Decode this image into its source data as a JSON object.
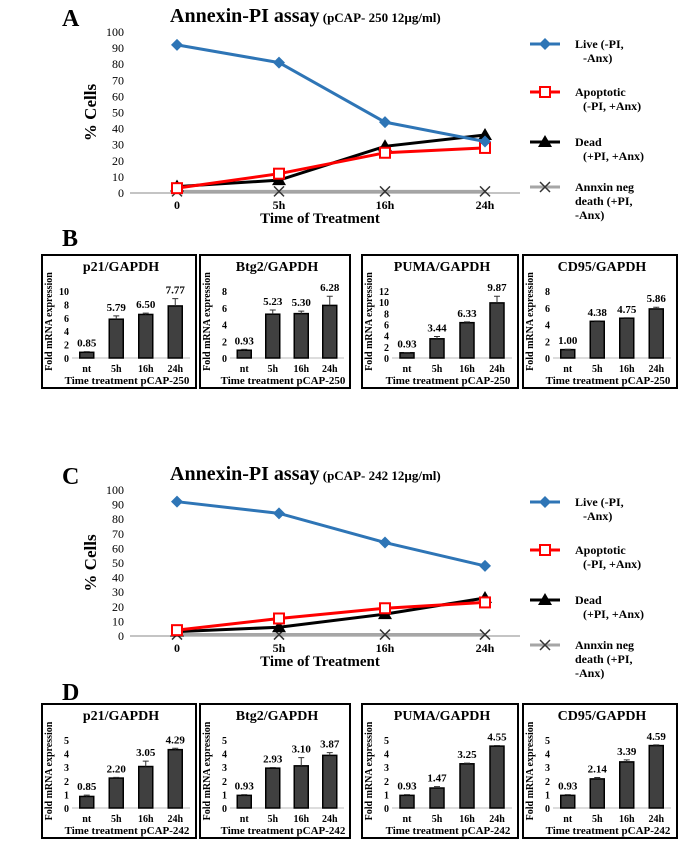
{
  "chart_data": [
    {
      "panel": "A",
      "type": "line",
      "title": "Annexin-PI assay",
      "subtitle": "(pCAP- 250  12µg/ml)",
      "ylabel": "% Cells",
      "xlabel": "Time of  Treatment",
      "ylim": [
        0,
        100
      ],
      "yticks": [
        0,
        10,
        20,
        30,
        40,
        50,
        60,
        70,
        80,
        90,
        100
      ],
      "categories": [
        "0",
        "5h",
        "16h",
        "24h"
      ],
      "series": [
        {
          "name": "Live (-PI, -Anx)",
          "legend": [
            "Live (-PI,",
            "-Anx)"
          ],
          "color": "#2e75b6",
          "marker": "diamond",
          "values": [
            92,
            81,
            44,
            32
          ]
        },
        {
          "name": "Apoptotic (-PI, +Anx)",
          "legend": [
            "Apoptotic",
            "(-PI, +Anx)"
          ],
          "color": "#ff0000",
          "marker": "square",
          "values": [
            3,
            12,
            25,
            28
          ]
        },
        {
          "name": "Dead (+PI, +Anx)",
          "legend": [
            "Dead",
            "(+PI, +Anx)"
          ],
          "color": "#000000",
          "marker": "triangle",
          "values": [
            4,
            8,
            29,
            36
          ]
        },
        {
          "name": "Annxin neg death (+PI, -Anx)",
          "legend": [
            "Annxin neg",
            "death (+PI,",
            "-Anx)"
          ],
          "color": "#a6a6a6",
          "marker": "x",
          "values": [
            1,
            1,
            1,
            1
          ]
        }
      ]
    },
    {
      "panel": "B",
      "type": "bar",
      "ylabel": "Fold mRNA expression",
      "xlabel": "Time treatment  pCAP-250",
      "categories": [
        "nt",
        "5h",
        "16h",
        "24h"
      ],
      "charts": [
        {
          "title": "p21/GAPDH",
          "ylim": [
            0,
            10
          ],
          "yticks": [
            0,
            2,
            4,
            6,
            8,
            10
          ],
          "values": [
            0.85,
            5.79,
            6.5,
            7.77
          ],
          "labels": [
            "0.85",
            "5.79",
            "6.50",
            "7.77"
          ],
          "errors": [
            0.1,
            0.5,
            0.2,
            1.1
          ]
        },
        {
          "title": "Btg2/GAPDH",
          "ylim": [
            0,
            8
          ],
          "yticks": [
            0,
            2,
            4,
            6,
            8
          ],
          "values": [
            0.93,
            5.23,
            5.3,
            6.28
          ],
          "labels": [
            "0.93",
            "5.23",
            "5.30",
            "6.28"
          ],
          "errors": [
            0.1,
            0.5,
            0.3,
            1.1
          ]
        },
        {
          "title": "PUMA/GAPDH",
          "ylim": [
            0,
            12
          ],
          "yticks": [
            0,
            2,
            4,
            6,
            8,
            10,
            12
          ],
          "values": [
            0.93,
            3.44,
            6.33,
            9.87
          ],
          "labels": [
            "0.93",
            "3.44",
            "6.33",
            "9.87"
          ],
          "errors": [
            0.05,
            0.4,
            0.15,
            1.2
          ]
        },
        {
          "title": "CD95/GAPDH",
          "ylim": [
            0,
            8
          ],
          "yticks": [
            0,
            2,
            4,
            6,
            8
          ],
          "values": [
            1.0,
            4.38,
            4.75,
            5.86
          ],
          "labels": [
            "1.00",
            "4.38",
            "4.75",
            "5.86"
          ],
          "errors": [
            0.05,
            0.05,
            0.05,
            0.2
          ]
        }
      ]
    },
    {
      "panel": "C",
      "type": "line",
      "title": "Annexin-PI assay",
      "subtitle": "(pCAP- 242  12µg/ml)",
      "ylabel": "% Cells",
      "xlabel": "Time of  Treatment",
      "ylim": [
        0,
        100
      ],
      "yticks": [
        0,
        10,
        20,
        30,
        40,
        50,
        60,
        70,
        80,
        90,
        100
      ],
      "categories": [
        "0",
        "5h",
        "16h",
        "24h"
      ],
      "series": [
        {
          "name": "Live (-PI, -Anx)",
          "legend": [
            "Live (-PI,",
            "-Anx)"
          ],
          "color": "#2e75b6",
          "marker": "diamond",
          "values": [
            92,
            84,
            64,
            48
          ]
        },
        {
          "name": "Apoptotic (-PI, +Anx)",
          "legend": [
            "Apoptotic",
            "(-PI, +Anx)"
          ],
          "color": "#ff0000",
          "marker": "square",
          "values": [
            4,
            12,
            19,
            23
          ]
        },
        {
          "name": "Dead (+PI, +Anx)",
          "legend": [
            "Dead",
            "(+PI, +Anx)"
          ],
          "color": "#000000",
          "marker": "triangle",
          "values": [
            3,
            6,
            15,
            26
          ]
        },
        {
          "name": "Annxin neg death (+PI, -Anx)",
          "legend": [
            "Annxin neg",
            "death (+PI,",
            "-Anx)"
          ],
          "color": "#a6a6a6",
          "marker": "x",
          "values": [
            1,
            1,
            1,
            1
          ]
        }
      ]
    },
    {
      "panel": "D",
      "type": "bar",
      "ylabel": "Fold mRNA expression",
      "xlabel": "Time treatment  pCAP-242",
      "categories": [
        "nt",
        "5h",
        "16h",
        "24h"
      ],
      "charts": [
        {
          "title": "p21/GAPDH",
          "ylim": [
            0,
            5
          ],
          "yticks": [
            0,
            1,
            2,
            3,
            4,
            5
          ],
          "values": [
            0.85,
            2.2,
            3.05,
            4.29
          ],
          "labels": [
            "0.85",
            "2.20",
            "3.05",
            "4.29"
          ],
          "errors": [
            0.1,
            0.05,
            0.4,
            0.1
          ]
        },
        {
          "title": "Btg2/GAPDH",
          "ylim": [
            0,
            5
          ],
          "yticks": [
            0,
            1,
            2,
            3,
            4,
            5
          ],
          "values": [
            0.93,
            2.93,
            3.1,
            3.87
          ],
          "labels": [
            "0.93",
            "2.93",
            "3.10",
            "3.87"
          ],
          "errors": [
            0.05,
            0.05,
            0.6,
            0.2
          ]
        },
        {
          "title": "PUMA/GAPDH",
          "ylim": [
            0,
            5
          ],
          "yticks": [
            0,
            1,
            2,
            3,
            4,
            5
          ],
          "values": [
            0.93,
            1.47,
            3.25,
            4.55
          ],
          "labels": [
            "0.93",
            "1.47",
            "3.25",
            "4.55"
          ],
          "errors": [
            0.05,
            0.1,
            0.05,
            0.05
          ]
        },
        {
          "title": "CD95/GAPDH",
          "ylim": [
            0,
            5
          ],
          "yticks": [
            0,
            1,
            2,
            3,
            4,
            5
          ],
          "values": [
            0.93,
            2.14,
            3.39,
            4.59
          ],
          "labels": [
            "0.93",
            "2.14",
            "3.39",
            "4.59"
          ],
          "errors": [
            0.05,
            0.1,
            0.15,
            0.05
          ]
        }
      ]
    }
  ]
}
